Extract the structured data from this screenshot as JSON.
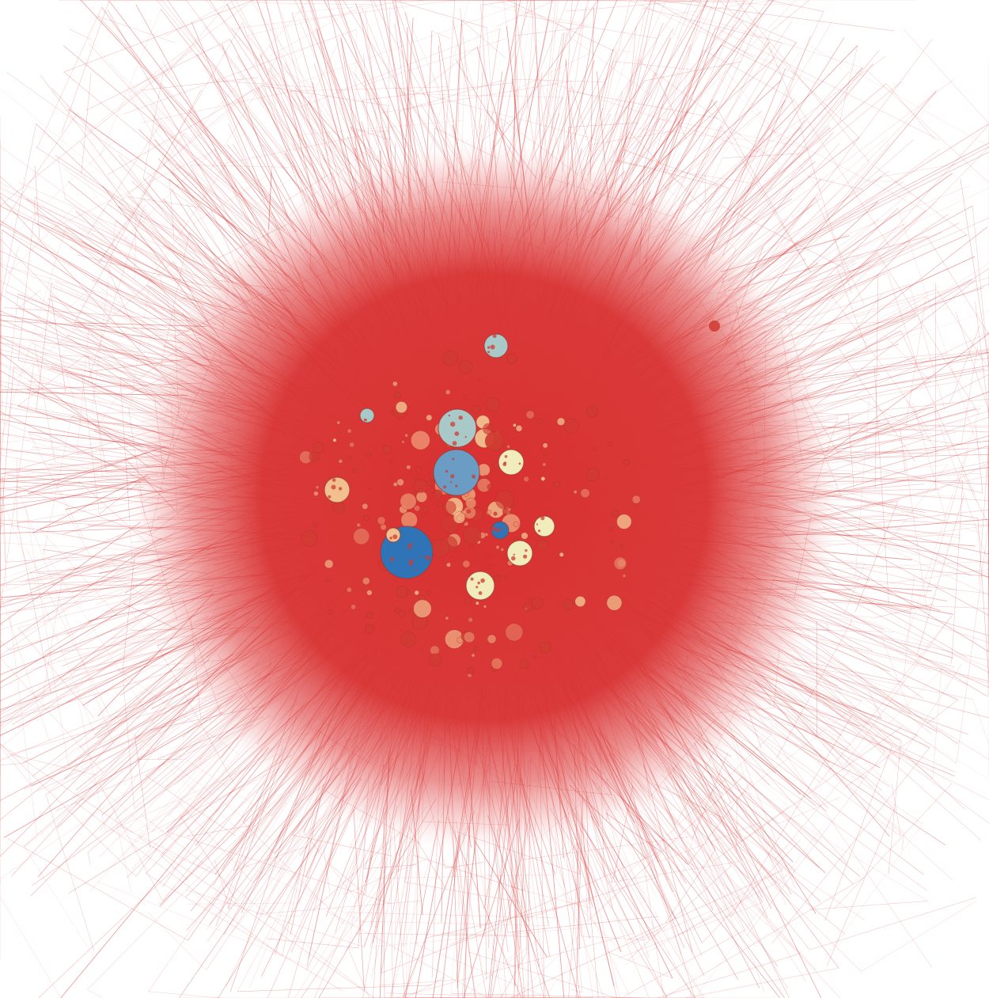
{
  "graph": {
    "type": "force-directed-network",
    "background": "#ffffff",
    "edge_color": "#d42a2a",
    "core_color": "#d83030",
    "node_palette": {
      "red": "#cf3b32",
      "salmon": "#e9896a",
      "peach": "#f2c08f",
      "cream": "#f1ecbb",
      "pale_blue": "#a9c9c9",
      "steel_blue": "#6a9cc4",
      "blue": "#2f74b7"
    },
    "hubs": [
      {
        "color": "blue"
      },
      {
        "color": "steel_blue"
      },
      {
        "color": "pale_blue"
      },
      {
        "color": "pale_blue"
      },
      {
        "color": "cream"
      },
      {
        "color": "cream"
      },
      {
        "color": "peach"
      },
      {
        "color": "peach"
      },
      {
        "color": "blue"
      },
      {
        "color": "pale_blue"
      },
      {
        "color": "cream"
      },
      {
        "color": "cream"
      }
    ]
  }
}
